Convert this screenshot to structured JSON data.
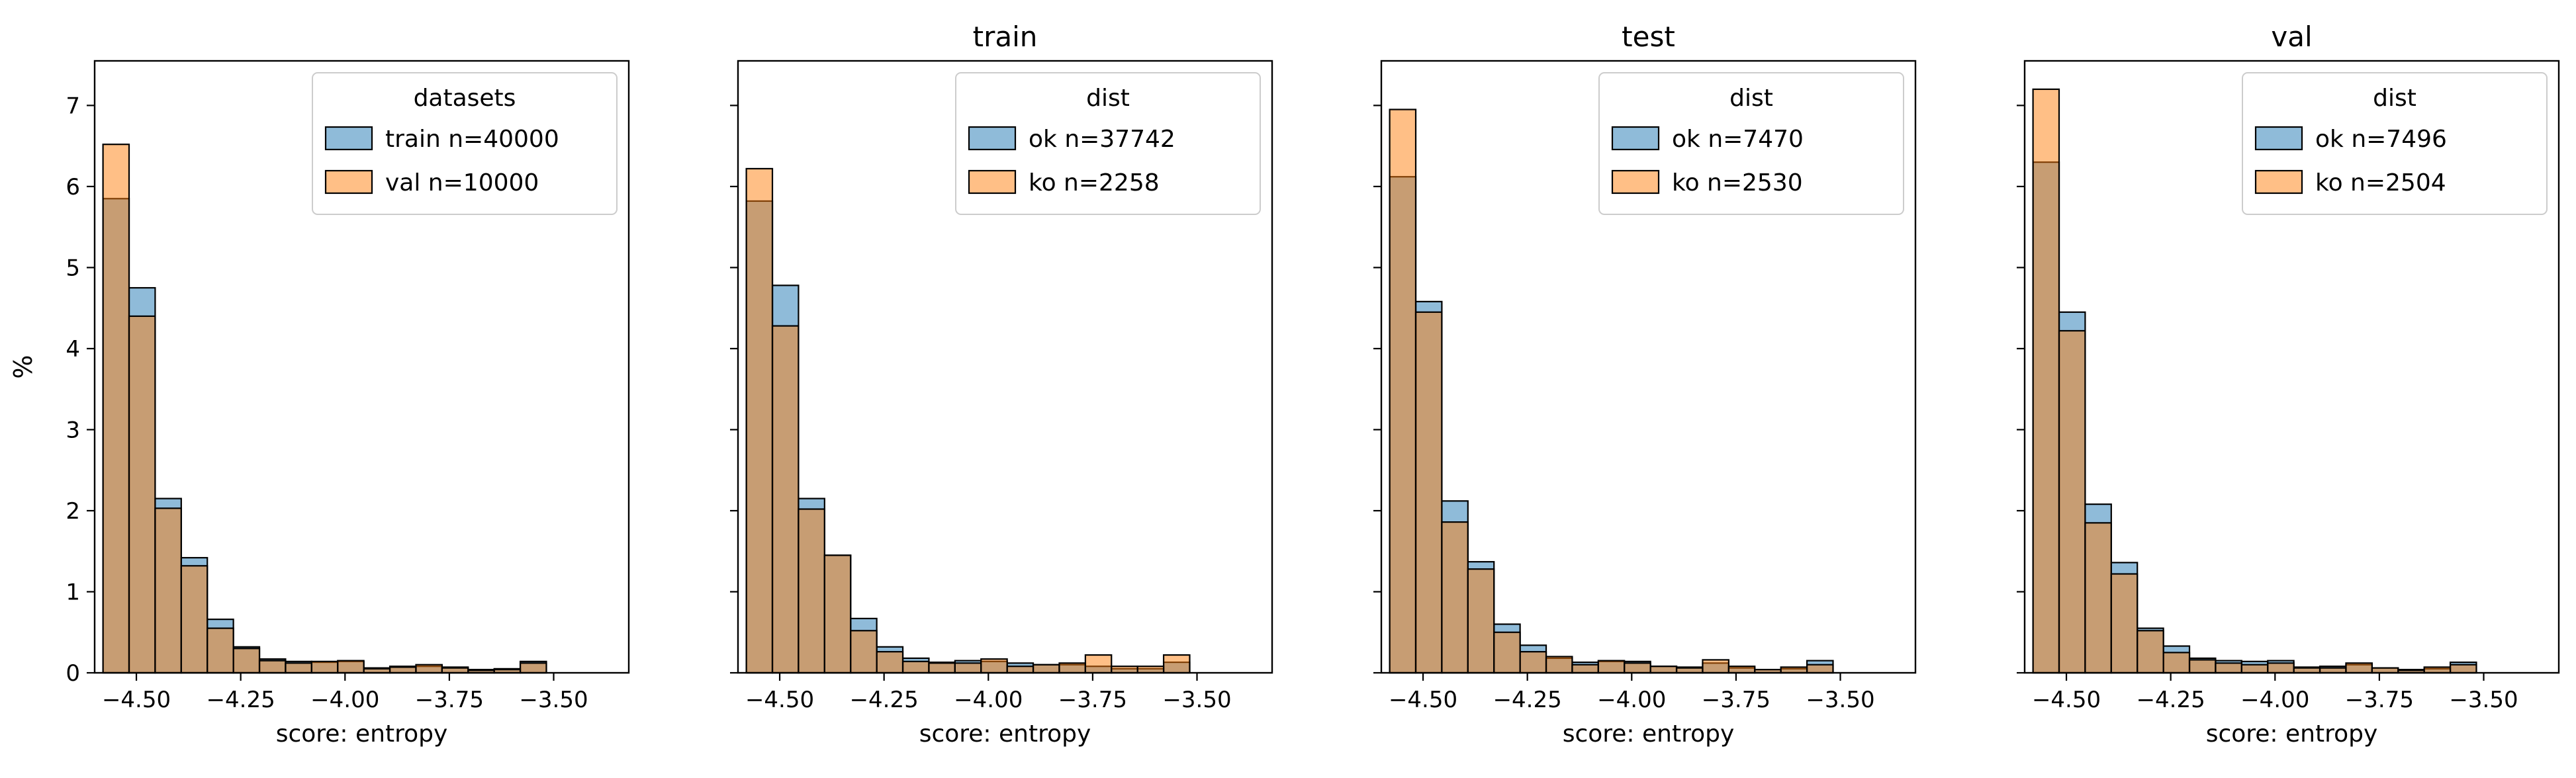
{
  "figure": {
    "shared_ylabel": "%",
    "colors": {
      "series_a": "#1f77b4",
      "series_b": "#ff7f0e",
      "edge": "#000000"
    },
    "bar_alpha": 0.5
  },
  "chart_data": [
    {
      "type": "histogram",
      "title": "",
      "xlabel": "score: entropy",
      "ylabel": "%",
      "xlim": [
        -4.6,
        -3.32
      ],
      "ylim": [
        0,
        7.55
      ],
      "xticks": [
        -4.5,
        -4.25,
        -4.0,
        -3.75,
        -3.5
      ],
      "xtick_labels": [
        "−4.50",
        "−4.25",
        "−4.00",
        "−3.75",
        "−3.50"
      ],
      "yticks": [
        0,
        1,
        2,
        3,
        4,
        5,
        6,
        7
      ],
      "ytick_labels": [
        "0",
        "1",
        "2",
        "3",
        "4",
        "5",
        "6",
        "7"
      ],
      "bin_start": -4.58,
      "bin_width": 0.0625,
      "legend": {
        "title": "datasets",
        "placement": "upper right"
      },
      "series": [
        {
          "name": "train n=40000",
          "values": [
            5.85,
            4.75,
            2.15,
            1.42,
            0.66,
            0.32,
            0.17,
            0.14,
            0.13,
            0.14,
            0.06,
            0.08,
            0.08,
            0.07,
            0.04,
            0.05,
            0.14
          ]
        },
        {
          "name": "val n=10000",
          "values": [
            6.52,
            4.4,
            2.03,
            1.32,
            0.55,
            0.3,
            0.15,
            0.12,
            0.14,
            0.15,
            0.05,
            0.07,
            0.1,
            0.06,
            0.03,
            0.04,
            0.12
          ]
        }
      ]
    },
    {
      "type": "histogram",
      "title": "train",
      "xlabel": "score: entropy",
      "ylabel": "",
      "xlim": [
        -4.6,
        -3.32
      ],
      "ylim": [
        0,
        7.55
      ],
      "xticks": [
        -4.5,
        -4.25,
        -4.0,
        -3.75,
        -3.5
      ],
      "xtick_labels": [
        "−4.50",
        "−4.25",
        "−4.00",
        "−3.75",
        "−3.50"
      ],
      "yticks": [
        0,
        1,
        2,
        3,
        4,
        5,
        6,
        7
      ],
      "ytick_labels": [],
      "bin_start": -4.58,
      "bin_width": 0.0625,
      "legend": {
        "title": "dist",
        "placement": "upper right"
      },
      "series": [
        {
          "name": "ok n=37742",
          "values": [
            5.82,
            4.78,
            2.15,
            1.45,
            0.67,
            0.32,
            0.18,
            0.13,
            0.15,
            0.14,
            0.12,
            0.1,
            0.1,
            0.08,
            0.05,
            0.05,
            0.13
          ]
        },
        {
          "name": "ko n=2258",
          "values": [
            6.22,
            4.28,
            2.02,
            1.45,
            0.52,
            0.26,
            0.14,
            0.12,
            0.12,
            0.17,
            0.08,
            0.1,
            0.12,
            0.22,
            0.08,
            0.08,
            0.22
          ]
        }
      ]
    },
    {
      "type": "histogram",
      "title": "test",
      "xlabel": "score: entropy",
      "ylabel": "",
      "xlim": [
        -4.6,
        -3.32
      ],
      "ylim": [
        0,
        7.55
      ],
      "xticks": [
        -4.5,
        -4.25,
        -4.0,
        -3.75,
        -3.5
      ],
      "xtick_labels": [
        "−4.50",
        "−4.25",
        "−4.00",
        "−3.75",
        "−3.50"
      ],
      "yticks": [
        0,
        1,
        2,
        3,
        4,
        5,
        6,
        7
      ],
      "ytick_labels": [],
      "bin_start": -4.58,
      "bin_width": 0.0625,
      "legend": {
        "title": "dist",
        "placement": "upper right"
      },
      "series": [
        {
          "name": "ok n=7470",
          "values": [
            6.12,
            4.58,
            2.12,
            1.37,
            0.6,
            0.34,
            0.18,
            0.13,
            0.14,
            0.14,
            0.08,
            0.07,
            0.12,
            0.06,
            0.04,
            0.05,
            0.15
          ]
        },
        {
          "name": "ko n=2530",
          "values": [
            6.95,
            4.45,
            1.86,
            1.28,
            0.5,
            0.26,
            0.2,
            0.1,
            0.15,
            0.12,
            0.08,
            0.06,
            0.16,
            0.08,
            0.04,
            0.07,
            0.1
          ]
        }
      ]
    },
    {
      "type": "histogram",
      "title": "val",
      "xlabel": "score: entropy",
      "ylabel": "",
      "xlim": [
        -4.6,
        -3.32
      ],
      "ylim": [
        0,
        7.55
      ],
      "xticks": [
        -4.5,
        -4.25,
        -4.0,
        -3.75,
        -3.5
      ],
      "xtick_labels": [
        "−4.50",
        "−4.25",
        "−4.00",
        "−3.75",
        "−3.50"
      ],
      "yticks": [
        0,
        1,
        2,
        3,
        4,
        5,
        6,
        7
      ],
      "ytick_labels": [],
      "bin_start": -4.58,
      "bin_width": 0.0625,
      "legend": {
        "title": "dist",
        "placement": "upper right"
      },
      "series": [
        {
          "name": "ok n=7496",
          "values": [
            6.3,
            4.45,
            2.08,
            1.36,
            0.55,
            0.33,
            0.18,
            0.15,
            0.14,
            0.15,
            0.07,
            0.08,
            0.1,
            0.06,
            0.04,
            0.05,
            0.13
          ]
        },
        {
          "name": "ko n=2504",
          "values": [
            7.2,
            4.22,
            1.85,
            1.22,
            0.52,
            0.25,
            0.16,
            0.12,
            0.1,
            0.12,
            0.06,
            0.06,
            0.12,
            0.06,
            0.03,
            0.07,
            0.1
          ]
        }
      ]
    }
  ]
}
